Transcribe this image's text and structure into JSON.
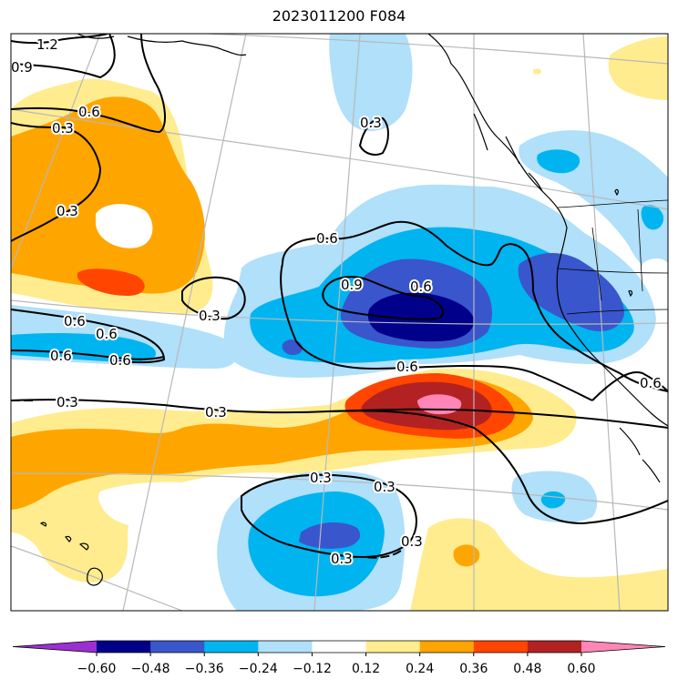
{
  "title": "2023011200 F084",
  "colorbar": {
    "ticks": [
      "−0.60",
      "−0.48",
      "−0.36",
      "−0.24",
      "−0.12",
      "0.12",
      "0.24",
      "0.36",
      "0.48",
      "0.60"
    ],
    "colors": [
      "#9b30d0",
      "#00008b",
      "#3a56cc",
      "#00b4f0",
      "#b0e0fa",
      "#ffffff",
      "#ffec8f",
      "#ffa500",
      "#ff4500",
      "#b22222",
      "#ff86b6"
    ]
  },
  "contour_labels": [
    "1.2",
    "0.9",
    "0.6",
    "0.3",
    "0.3",
    "0.3",
    "0.6",
    "0.9",
    "0.6",
    "0.3",
    "0.6",
    "0.6",
    "0.6",
    "0.6",
    "0.3",
    "0.3",
    "0.6",
    "0.6",
    "0.3",
    "0.3",
    "0.3",
    "0.3"
  ],
  "fill_colors": {
    "yellow": "#ffec8f",
    "orange": "#ffa500",
    "red_orange": "#ff4500",
    "dark_red": "#b22222",
    "pink": "#ff86b6",
    "light_blue": "#b0e0fa",
    "sky_blue": "#00b4f0",
    "medium_blue": "#3a56cc",
    "navy": "#00008b"
  }
}
